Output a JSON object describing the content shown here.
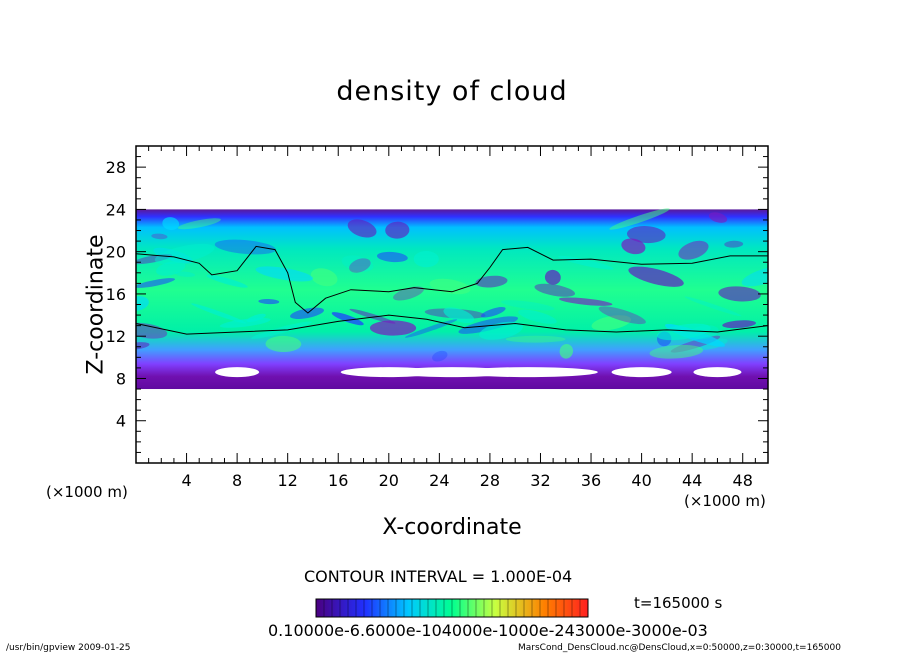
{
  "chart_data": {
    "type": "heatmap",
    "title": "density of cloud",
    "xlabel": "X-coordinate",
    "ylabel": "Z-coordinate",
    "x_unit": "(×1000 m)",
    "y_unit": "(×1000 m)",
    "xlim": [
      0,
      50
    ],
    "ylim": [
      0,
      30
    ],
    "x_ticks": [
      4,
      8,
      12,
      16,
      20,
      24,
      28,
      32,
      36,
      40,
      44,
      48
    ],
    "y_ticks": [
      4,
      8,
      12,
      16,
      20,
      24,
      28
    ],
    "cloud_layer_z_range": [
      7,
      24
    ],
    "contour_interval": "CONTOUR INTERVAL = 1.000E-04",
    "time": "t=165000 s",
    "colorbar_labels": "0.10000e-6.6000e-104000e-1000e-243000e-3000e-03",
    "colormap": [
      "#4b0080",
      "#2030ff",
      "#00c8ff",
      "#00ff90",
      "#c8ff40",
      "#ff8000",
      "#ff2020"
    ]
  },
  "footer": {
    "left": "/usr/bin/gpview   2009-01-25",
    "right": "MarsCond_DensCloud.nc@DensCloud,x=0:50000,z=0:30000,t=165000"
  }
}
